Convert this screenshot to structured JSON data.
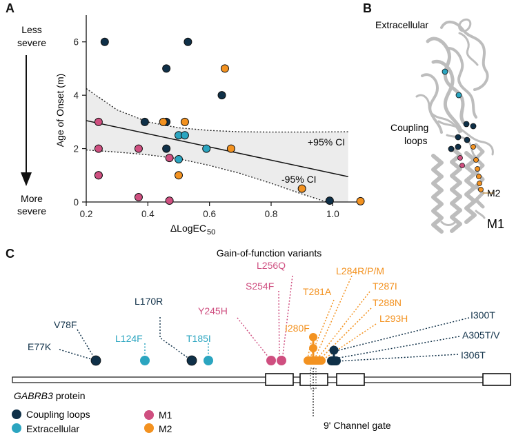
{
  "panels": {
    "a": "A",
    "b": "B",
    "c": "C"
  },
  "chart_data": {
    "type": "scatter",
    "xlabel_main": "ΔLogEC",
    "xlabel_sub": "50",
    "ylabel": "Age of Onset (m)",
    "xlim": [
      0.2,
      1.1
    ],
    "ylim": [
      0,
      7
    ],
    "xticks": [
      "0.2",
      "0.4",
      "0.6",
      "0.8",
      "1.0"
    ],
    "xtick_values": [
      0.2,
      0.4,
      0.6,
      0.8,
      1.0
    ],
    "yticks": [
      "0",
      "2",
      "4",
      "6"
    ],
    "ytick_values": [
      0,
      2,
      4,
      6
    ],
    "severity_top": [
      "Less",
      "severe"
    ],
    "severity_bottom": [
      "More",
      "severe"
    ],
    "fit_line": {
      "x": [
        0.2,
        1.05
      ],
      "y": [
        3.05,
        0.95
      ]
    },
    "ci_upper_label": "+95% CI",
    "ci_lower_label": "-95% CI",
    "ci_upper": {
      "x": [
        0.2,
        0.3,
        0.4,
        0.5,
        0.6,
        0.7,
        0.8,
        0.9,
        1.05
      ],
      "y": [
        4.25,
        3.45,
        3.0,
        2.78,
        2.68,
        2.63,
        2.62,
        2.62,
        2.63
      ]
    },
    "ci_lower": {
      "x": [
        0.2,
        0.3,
        0.4,
        0.5,
        0.6,
        0.7,
        0.8,
        0.9,
        0.98
      ],
      "y": [
        1.95,
        1.87,
        1.77,
        1.62,
        1.37,
        1.07,
        0.7,
        0.3,
        0.0
      ]
    },
    "series": [
      {
        "name": "Coupling loops",
        "color": "#0f3048",
        "x": [
          0.26,
          0.53,
          0.46,
          0.64,
          0.39,
          0.46,
          0.46,
          0.24,
          0.99
        ],
        "y": [
          6.0,
          6.0,
          5.0,
          4.0,
          3.0,
          3.0,
          2.0,
          1.0,
          0.05
        ]
      },
      {
        "name": "Extracellular",
        "color": "#2ba5c0",
        "x": [
          0.5,
          0.52,
          0.59,
          0.5
        ],
        "y": [
          2.5,
          2.5,
          2.0,
          1.6
        ]
      },
      {
        "name": "M1",
        "color": "#cf4f80",
        "x": [
          0.24,
          0.24,
          0.37,
          0.47,
          0.24,
          0.37,
          0.47
        ],
        "y": [
          3.0,
          2.0,
          2.0,
          1.65,
          1.0,
          0.18,
          0.05
        ]
      },
      {
        "name": "M2",
        "color": "#f39220",
        "x": [
          0.65,
          0.45,
          0.52,
          0.67,
          0.5,
          0.9,
          1.09
        ],
        "y": [
          5.0,
          3.0,
          3.0,
          2.0,
          1.0,
          0.5,
          0.03
        ]
      }
    ]
  },
  "structure": {
    "extracellular_label": "Extracellular",
    "coupling_label": [
      "Coupling",
      "loops"
    ],
    "m2_label": "M2",
    "m1_label": "M1"
  },
  "protein_map": {
    "title": "Gain-of-function variants",
    "protein_name": "GABRB3",
    "protein_suffix": " protein",
    "gate_label": "9' Channel gate",
    "legend": [
      {
        "label": "Coupling loops",
        "color": "#0f3048"
      },
      {
        "label": "Extracellular",
        "color": "#2ba5c0"
      },
      {
        "label": "M1",
        "color": "#cf4f80"
      },
      {
        "label": "M2",
        "color": "#f39220"
      }
    ],
    "variants": [
      {
        "label": "E77K",
        "color": "#0f3048",
        "text_color": "#0f3048"
      },
      {
        "label": "V78F",
        "color": "#0f3048",
        "text_color": "#0f3048"
      },
      {
        "label": "L124F",
        "color": "#2ba5c0",
        "text_color": "#2ba5c0"
      },
      {
        "label": "L170R",
        "color": "#0f3048",
        "text_color": "#0f3048"
      },
      {
        "label": "T185I",
        "color": "#2ba5c0",
        "text_color": "#2ba5c0"
      },
      {
        "label": "Y245H",
        "color": "#cf4f80",
        "text_color": "#cf4f80"
      },
      {
        "label": "S254F",
        "color": "#cf4f80",
        "text_color": "#cf4f80"
      },
      {
        "label": "L256Q",
        "color": "#cf4f80",
        "text_color": "#cf4f80"
      },
      {
        "label": "I280F",
        "color": "#f39220",
        "text_color": "#f39220"
      },
      {
        "label": "T281A",
        "color": "#f39220",
        "text_color": "#f39220"
      },
      {
        "label": "L284R/P/M",
        "color": "#f39220",
        "text_color": "#f39220"
      },
      {
        "label": "T287I",
        "color": "#f39220",
        "text_color": "#f39220"
      },
      {
        "label": "T288N",
        "color": "#f39220",
        "text_color": "#f39220"
      },
      {
        "label": "L293H",
        "color": "#f39220",
        "text_color": "#f39220"
      },
      {
        "label": "I300T",
        "color": "#0f3048",
        "text_color": "#0f3048"
      },
      {
        "label": "A305T/V",
        "color": "#0f3048",
        "text_color": "#0f3048"
      },
      {
        "label": "I306T",
        "color": "#0f3048",
        "text_color": "#0f3048"
      }
    ]
  }
}
